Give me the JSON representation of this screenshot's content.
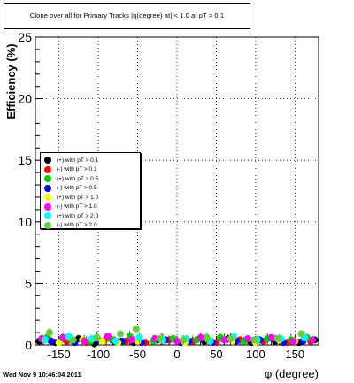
{
  "title": "Clone  over all for Primary Tracks   |η(degree) at| < 1.0 at pT > 0.1",
  "timestamp": "Wed Nov  9 10:46:04 2011",
  "chart_data": {
    "type": "scatter",
    "xlabel": "φ (degree)",
    "ylabel": "Efficiency (%)",
    "xlim": [
      -180,
      180
    ],
    "ylim": [
      0,
      25
    ],
    "xticks": [
      -150,
      -100,
      -50,
      0,
      50,
      100,
      150
    ],
    "yticks": [
      0,
      5,
      10,
      15,
      20,
      25
    ],
    "grid": true,
    "legend_position": "left-middle",
    "series": [
      {
        "name": "(+) with pT > 0.1",
        "color": "#000000",
        "x": [
          -175,
          -155,
          -125,
          -105,
          -80,
          -55,
          -25,
          5,
          35,
          65,
          95,
          125,
          155,
          175
        ],
        "y": [
          0.3,
          0.2,
          0.5,
          0.1,
          0.3,
          0.2,
          0.4,
          0.2,
          0.3,
          0.5,
          0.2,
          0.3,
          0.2,
          0.4
        ]
      },
      {
        "name": "(-) with pT > 0.1",
        "color": "#ff0000",
        "x": [
          -170,
          -140,
          -115,
          -90,
          -65,
          -40,
          -10,
          20,
          50,
          80,
          110,
          140,
          170
        ],
        "y": [
          0.4,
          0.3,
          0.2,
          0.5,
          0.3,
          0.2,
          0.4,
          0.3,
          0.2,
          0.4,
          0.3,
          0.2,
          0.3
        ]
      },
      {
        "name": "(+) with pT > 0.5",
        "color": "#00cc00",
        "x": [
          -165,
          -135,
          -110,
          -85,
          -60,
          -30,
          -5,
          25,
          55,
          85,
          115,
          145,
          165
        ],
        "y": [
          0.6,
          0.4,
          0.3,
          0.5,
          0.7,
          0.3,
          0.5,
          0.4,
          0.6,
          0.3,
          0.5,
          0.4,
          0.6
        ]
      },
      {
        "name": "(-) with pT > 0.5",
        "color": "#0000ff",
        "x": [
          -160,
          -130,
          -100,
          -70,
          -45,
          -15,
          15,
          45,
          75,
          105,
          135,
          160
        ],
        "y": [
          0.3,
          0.2,
          0.4,
          0.3,
          0.2,
          0.4,
          0.3,
          0.2,
          0.3,
          0.4,
          0.2,
          0.3
        ]
      },
      {
        "name": "(+) with pT > 1.0",
        "color": "#ffff00",
        "x": [
          -150,
          -120,
          -95,
          -75,
          -50,
          -20,
          10,
          40,
          70,
          100,
          130,
          150
        ],
        "y": [
          0.2,
          0.4,
          0.3,
          0.2,
          0.3,
          0.5,
          0.2,
          0.4,
          0.3,
          0.2,
          0.4,
          0.3
        ]
      },
      {
        "name": "(-) with pT > 1.0",
        "color": "#ff00ff",
        "x": [
          -172,
          -145,
          -118,
          -88,
          -58,
          -28,
          0,
          30,
          60,
          90,
          120,
          148,
          172
        ],
        "y": [
          0.5,
          0.6,
          0.3,
          0.7,
          0.4,
          0.5,
          0.3,
          0.6,
          0.4,
          0.5,
          0.6,
          0.3,
          0.4
        ]
      },
      {
        "name": "(+) with pT > 2.0",
        "color": "#00ffff",
        "x": [
          -168,
          -138,
          -108,
          -78,
          -48,
          -18,
          12,
          42,
          72,
          102,
          132,
          162
        ],
        "y": [
          0.4,
          0.7,
          0.5,
          0.3,
          0.6,
          0.4,
          0.5,
          0.3,
          0.7,
          0.4,
          0.5,
          0.6
        ]
      },
      {
        "name": "(-) with pT > 2.0",
        "color": "#66cc44",
        "x": [
          -162,
          -132,
          -102,
          -72,
          -52,
          -22,
          8,
          38,
          68,
          98,
          128,
          158
        ],
        "y": [
          1.0,
          0.4,
          0.6,
          0.9,
          1.3,
          0.5,
          0.4,
          0.6,
          0.5,
          0.4,
          0.5,
          0.9
        ]
      }
    ]
  }
}
